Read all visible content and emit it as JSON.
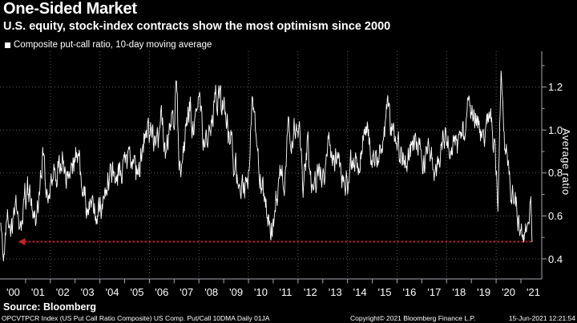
{
  "footer": {
    "source": "Source: Bloomberg",
    "ticker_line": "OPCVTPCR Index (US Put Call Ratio Composite) US Comp. Put/Call 10DMA  Daily 01JA",
    "copyright": "Copyright© 2021 Bloomberg Finance L.P.",
    "timestamp": "15-Jun-2021 12:21:54"
  },
  "colors": {
    "background": "#000000",
    "text": "#ffffff",
    "grid": "#5d5d66",
    "axis": "#a8a8b0",
    "series": "#ffffff",
    "reference": "#c42229"
  },
  "chart_data": {
    "type": "line",
    "title": "One-Sided Market",
    "subtitle": "U.S. equity, stock-index contracts show the most optimism since 2000",
    "legend_label": "Composite put-call ratio, 10-day moving average",
    "ylabel": "Average ratio",
    "legend_position": "top-left",
    "grid": "dotted",
    "x_tick_labels": [
      "'00",
      "'01",
      "'02",
      "'03",
      "'04",
      "'05",
      "'06",
      "'07",
      "'08",
      "'09",
      "'10",
      "'11",
      "'12",
      "'13",
      "'14",
      "'15",
      "'16",
      "'17",
      "'18",
      "'19",
      "'20",
      "'21"
    ],
    "x_range_years": [
      2000,
      2021.87
    ],
    "y_range": [
      0.31,
      1.37
    ],
    "y_ticks": [
      0.4,
      0.6,
      0.8,
      1.0,
      1.2
    ],
    "y_minor_ticks": [
      0.5,
      0.7,
      0.9,
      1.1,
      1.3
    ],
    "grid_vertical_years": [
      2002,
      2004,
      2006,
      2008,
      2010,
      2012,
      2014,
      2016,
      2018,
      2020
    ],
    "reference_line": {
      "value": 0.48,
      "style": "dotted",
      "arrow": "left",
      "x_start_year": 2000.7,
      "x_end_year": 2021.45,
      "color": "#c42229"
    },
    "last_point": {
      "year": 2021.45,
      "value": 0.48
    },
    "series": [
      {
        "name": "Composite put-call ratio, 10-day moving average",
        "color": "#ffffff",
        "anchors": [
          [
            2000.0,
            0.56
          ],
          [
            2000.08,
            0.4
          ],
          [
            2000.17,
            0.44
          ],
          [
            2000.25,
            0.55
          ],
          [
            2000.4,
            0.5
          ],
          [
            2000.55,
            0.62
          ],
          [
            2000.7,
            0.57
          ],
          [
            2000.85,
            0.62
          ],
          [
            2001.0,
            0.68
          ],
          [
            2001.15,
            0.74
          ],
          [
            2001.3,
            0.66
          ],
          [
            2001.5,
            0.62
          ],
          [
            2001.7,
            0.95
          ],
          [
            2001.8,
            0.82
          ],
          [
            2001.95,
            0.72
          ],
          [
            2002.1,
            0.72
          ],
          [
            2002.3,
            0.78
          ],
          [
            2002.5,
            0.86
          ],
          [
            2002.65,
            0.76
          ],
          [
            2002.8,
            0.8
          ],
          [
            2003.0,
            0.76
          ],
          [
            2003.15,
            0.84
          ],
          [
            2003.3,
            0.74
          ],
          [
            2003.5,
            0.66
          ],
          [
            2003.7,
            0.7
          ],
          [
            2003.9,
            0.64
          ],
          [
            2004.1,
            0.68
          ],
          [
            2004.3,
            0.78
          ],
          [
            2004.5,
            0.84
          ],
          [
            2004.7,
            0.78
          ],
          [
            2004.9,
            0.83
          ],
          [
            2005.1,
            0.88
          ],
          [
            2005.3,
            0.92
          ],
          [
            2005.5,
            0.8
          ],
          [
            2005.7,
            0.88
          ],
          [
            2005.9,
            0.95
          ],
          [
            2006.1,
            0.88
          ],
          [
            2006.3,
            0.95
          ],
          [
            2006.5,
            1.02
          ],
          [
            2006.65,
            0.88
          ],
          [
            2006.8,
            0.96
          ],
          [
            2007.0,
            1.05
          ],
          [
            2007.08,
            1.26
          ],
          [
            2007.2,
            0.88
          ],
          [
            2007.35,
            0.95
          ],
          [
            2007.5,
            1.05
          ],
          [
            2007.65,
            1.12
          ],
          [
            2007.8,
            1.0
          ],
          [
            2008.0,
            1.17
          ],
          [
            2008.15,
            1.02
          ],
          [
            2008.3,
            0.95
          ],
          [
            2008.5,
            1.05
          ],
          [
            2008.7,
            1.12
          ],
          [
            2008.9,
            1.05
          ],
          [
            2009.05,
            1.1
          ],
          [
            2009.2,
            1.0
          ],
          [
            2009.4,
            0.88
          ],
          [
            2009.6,
            0.78
          ],
          [
            2009.8,
            0.72
          ],
          [
            2010.0,
            0.8
          ],
          [
            2010.15,
            1.05
          ],
          [
            2010.3,
            0.88
          ],
          [
            2010.5,
            0.75
          ],
          [
            2010.7,
            0.62
          ],
          [
            2010.9,
            0.52
          ],
          [
            2011.05,
            0.62
          ],
          [
            2011.25,
            0.8
          ],
          [
            2011.45,
            0.72
          ],
          [
            2011.6,
            1.0
          ],
          [
            2011.75,
            0.92
          ],
          [
            2011.9,
            0.98
          ],
          [
            2012.05,
            1.02
          ],
          [
            2012.2,
            0.8
          ],
          [
            2012.4,
            0.95
          ],
          [
            2012.55,
            0.72
          ],
          [
            2012.7,
            0.82
          ],
          [
            2012.9,
            0.86
          ],
          [
            2013.05,
            0.78
          ],
          [
            2013.2,
            0.95
          ],
          [
            2013.4,
            0.82
          ],
          [
            2013.6,
            0.9
          ],
          [
            2013.8,
            0.74
          ],
          [
            2014.0,
            0.7
          ],
          [
            2014.2,
            0.82
          ],
          [
            2014.4,
            0.78
          ],
          [
            2014.6,
            0.88
          ],
          [
            2014.8,
            1.0
          ],
          [
            2015.0,
            0.92
          ],
          [
            2015.2,
            0.86
          ],
          [
            2015.4,
            0.95
          ],
          [
            2015.62,
            1.14
          ],
          [
            2015.8,
            0.98
          ],
          [
            2016.0,
            1.05
          ],
          [
            2016.2,
            0.92
          ],
          [
            2016.4,
            0.85
          ],
          [
            2016.6,
            0.95
          ],
          [
            2016.8,
            0.88
          ],
          [
            2017.0,
            0.9
          ],
          [
            2017.2,
            0.85
          ],
          [
            2017.4,
            0.9
          ],
          [
            2017.6,
            0.84
          ],
          [
            2017.8,
            0.93
          ],
          [
            2018.0,
            1.03
          ],
          [
            2018.2,
            0.88
          ],
          [
            2018.4,
            0.93
          ],
          [
            2018.6,
            0.88
          ],
          [
            2018.8,
            1.0
          ],
          [
            2018.95,
            1.13
          ],
          [
            2019.1,
            1.02
          ],
          [
            2019.3,
            0.95
          ],
          [
            2019.5,
            0.88
          ],
          [
            2019.65,
            1.04
          ],
          [
            2019.8,
            0.94
          ],
          [
            2019.95,
            0.86
          ],
          [
            2020.08,
            0.74
          ],
          [
            2020.2,
            1.27
          ],
          [
            2020.32,
            0.92
          ],
          [
            2020.45,
            0.8
          ],
          [
            2020.6,
            0.7
          ],
          [
            2020.75,
            0.74
          ],
          [
            2020.9,
            0.63
          ],
          [
            2021.0,
            0.6
          ],
          [
            2021.1,
            0.53
          ],
          [
            2021.18,
            0.63
          ],
          [
            2021.26,
            0.54
          ],
          [
            2021.33,
            0.58
          ],
          [
            2021.4,
            0.7
          ],
          [
            2021.45,
            0.48
          ]
        ]
      }
    ],
    "noise": {
      "seed": 7,
      "amp_slow": 0.045,
      "amp_fast": 0.1,
      "step_years": 0.018
    }
  }
}
